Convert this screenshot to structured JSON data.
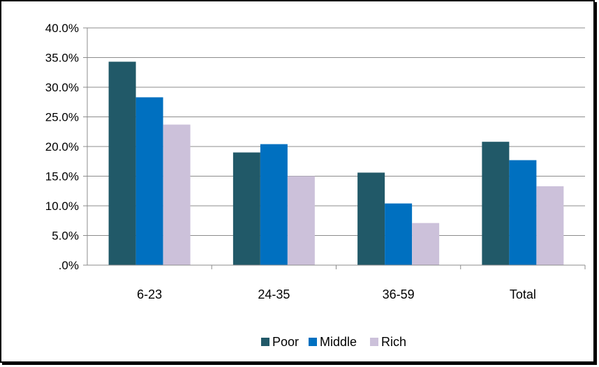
{
  "chart_data": {
    "type": "bar",
    "categories": [
      "6-23",
      "24-35",
      "36-59",
      "Total"
    ],
    "series": [
      {
        "name": "Poor",
        "color": "#215968",
        "values": [
          34.3,
          19.0,
          15.6,
          20.8
        ]
      },
      {
        "name": "Middle",
        "color": "#0070C0",
        "values": [
          28.3,
          20.4,
          10.4,
          17.7
        ]
      },
      {
        "name": "Rich",
        "color": "#CCC1DA",
        "values": [
          23.7,
          15.0,
          7.1,
          13.3
        ]
      }
    ],
    "y_ticks": [
      ".0%",
      "5.0%",
      "10.0%",
      "15.0%",
      "20.0%",
      "25.0%",
      "30.0%",
      "35.0%",
      "40.0%"
    ],
    "ylim": [
      0,
      40
    ],
    "grid": true,
    "legend_position": "bottom"
  }
}
